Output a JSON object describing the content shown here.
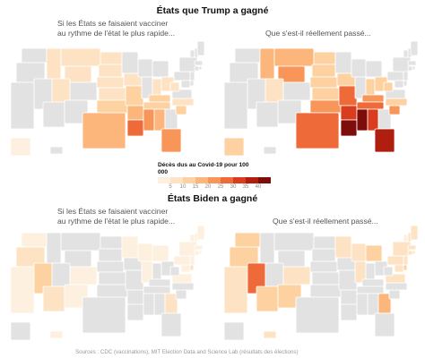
{
  "section_trump": {
    "title": "États que Trump a gagné"
  },
  "section_biden": {
    "title": "États Biden a gagné"
  },
  "panel_labels": {
    "hypothetical_line1": "Si les États se faisaient vacciner",
    "hypothetical_line2": "au rythme de l'état le plus rapide...",
    "actual": "Que s'est-il réellement passé..."
  },
  "legend": {
    "title_line1": "Décès dus au Covid-19 pour 100",
    "title_line2": "000",
    "ticks": [
      "5",
      "10",
      "15",
      "20",
      "25",
      "30",
      "35",
      "40"
    ],
    "colors": [
      "#fdf0de",
      "#fde3c4",
      "#fdd1a0",
      "#fcb67c",
      "#f89558",
      "#ee6a38",
      "#d93d1e",
      "#b01e10",
      "#7d0c0a"
    ]
  },
  "colors": {
    "no_data": "#e2e2e2",
    "state_border": "#ffffff",
    "outline": "#bdbdbd"
  },
  "map_data": {
    "value_unit": "Décès dus au Covid-19 pour 100 000",
    "maps": [
      {
        "id": "trump-hypothetical",
        "values": {
          "MT": 9,
          "ID": 8,
          "WY": 8,
          "UT": 7,
          "ND": 8,
          "SD": 9,
          "NE": 7,
          "KS": 9,
          "OK": 14,
          "TX": 16,
          "IA": 6,
          "MO": 12,
          "AR": 19,
          "LA": 27,
          "IN": 8,
          "OH": 6,
          "KY": 11,
          "TN": 14,
          "MS": 20,
          "AL": 17,
          "SC": 14,
          "NC": 6,
          "FL": 22,
          "WV": 7,
          "AK": 4
        }
      },
      {
        "id": "trump-actual",
        "values": {
          "MT": 18,
          "ID": 16,
          "WY": 20,
          "UT": 9,
          "ND": 14,
          "SD": 12,
          "NE": 12,
          "KS": 14,
          "OK": 22,
          "TX": 28,
          "IA": 11,
          "MO": 28,
          "AR": 34,
          "LA": 42,
          "IN": 13,
          "OH": 12,
          "KY": 21,
          "TN": 25,
          "MS": 44,
          "AL": 32,
          "SC": 20,
          "NC": 13,
          "FL": 38,
          "WV": 14,
          "AK": 12
        }
      },
      {
        "id": "biden-hypothetical",
        "values": {
          "WA": 4,
          "OR": 6,
          "CA": 3,
          "NV": 12,
          "AZ": 6,
          "CO": 3,
          "NM": 4,
          "MN": 3,
          "WI": 3,
          "MI": 4,
          "IL": 3,
          "GA": 6,
          "VA": 3,
          "PA": 4,
          "NY": 4,
          "NJ": 4,
          "DE": 5,
          "MD": 4,
          "CT": 3,
          "RI": 3,
          "MA": 3,
          "VT": 2,
          "NH": 3,
          "ME": 4,
          "HI": 4
        }
      },
      {
        "id": "biden-actual",
        "values": {
          "WA": 10,
          "OR": 14,
          "CA": 7,
          "NV": 28,
          "AZ": 13,
          "CO": 8,
          "NM": 13,
          "MN": 6,
          "WI": 9,
          "MI": 10,
          "IL": 6,
          "GA": 16,
          "VA": 7,
          "PA": 9,
          "NY": 7,
          "NJ": 7,
          "DE": 10,
          "MD": 7,
          "CT": 5,
          "RI": 6,
          "MA": 5,
          "VT": 4,
          "NH": 6,
          "ME": 8,
          "HI": 8
        }
      }
    ]
  },
  "sources": "Sources : CDC (vaccinations), MIT Election Data and Science Lab (résultats des élections)"
}
